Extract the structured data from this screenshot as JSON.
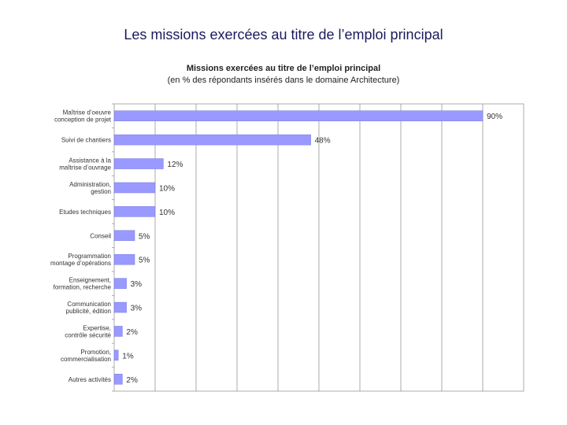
{
  "slide": {
    "title": "Les missions exercées au titre de l’emploi principal"
  },
  "chart_data": {
    "type": "bar",
    "orientation": "horizontal",
    "title": "Missions exercées au titre de l’emploi principal",
    "subtitle": "(en % des répondants insérés dans le domaine Architecture)",
    "categories": [
      [
        "Maîtrise d’oeuvre",
        "conception de projet"
      ],
      [
        "Suivi de chantiers"
      ],
      [
        "Assistance à la",
        "maîtrise d’ouvrage"
      ],
      [
        "Administration,",
        "gestion"
      ],
      [
        "Etudes techniques"
      ],
      [
        "Conseil"
      ],
      [
        "Programmation",
        "montage d’opérations"
      ],
      [
        "Enseignement,",
        "formation, recherche"
      ],
      [
        "Communication",
        "publicité, édition"
      ],
      [
        "Expertise,",
        "contrôle sécurité"
      ],
      [
        "Promotion,",
        "commercialisation"
      ],
      [
        "Autres activités"
      ]
    ],
    "values": [
      90,
      48,
      12,
      10,
      10,
      5,
      5,
      3,
      3,
      2,
      1,
      2
    ],
    "value_labels": [
      "90%",
      "48%",
      "12%",
      "10%",
      "10%",
      "5%",
      "5%",
      "3%",
      "3%",
      "2%",
      "1%",
      "2%"
    ],
    "xlim": [
      0,
      100
    ],
    "grid": true,
    "bar_color": "#9999ff"
  }
}
